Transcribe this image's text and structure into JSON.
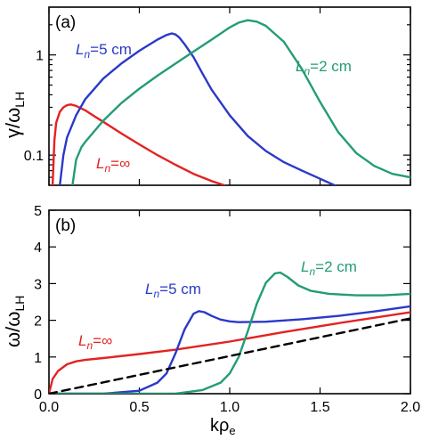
{
  "chart_data": [
    {
      "panel": "(a)",
      "type": "line",
      "ylabel": {
        "main": "γ/ω",
        "sub": "LH"
      },
      "xlim": [
        0,
        2.0
      ],
      "ylim": [
        0.05,
        3.0
      ],
      "yscale": "log",
      "yticks": [
        {
          "v": 0.1,
          "label": "0.1"
        },
        {
          "v": 1,
          "label": "1"
        }
      ],
      "series": [
        {
          "key": "inf",
          "name_l": "L",
          "name_sub": "n",
          "name_rest": "=∞",
          "color": "#e32222",
          "x": [
            0.02,
            0.03,
            0.04,
            0.06,
            0.08,
            0.1,
            0.12,
            0.15,
            0.2,
            0.25,
            0.3,
            0.4,
            0.5,
            0.6,
            0.7,
            0.8,
            0.9,
            0.97
          ],
          "y": [
            0.05,
            0.14,
            0.21,
            0.27,
            0.3,
            0.315,
            0.32,
            0.31,
            0.28,
            0.245,
            0.215,
            0.165,
            0.128,
            0.1,
            0.08,
            0.065,
            0.055,
            0.05
          ]
        },
        {
          "key": "5cm",
          "name_l": "L",
          "name_sub": "n",
          "name_rest": "=5 cm",
          "color": "#2a39c8",
          "x": [
            0.06,
            0.08,
            0.1,
            0.15,
            0.2,
            0.3,
            0.4,
            0.5,
            0.6,
            0.65,
            0.68,
            0.7,
            0.72,
            0.75,
            0.8,
            0.85,
            0.9,
            1.0,
            1.1,
            1.2,
            1.3,
            1.4,
            1.5,
            1.58
          ],
          "y": [
            0.05,
            0.1,
            0.15,
            0.25,
            0.36,
            0.58,
            0.82,
            1.1,
            1.42,
            1.58,
            1.64,
            1.6,
            1.5,
            1.28,
            0.95,
            0.65,
            0.45,
            0.25,
            0.155,
            0.11,
            0.085,
            0.07,
            0.058,
            0.05
          ]
        },
        {
          "key": "2cm",
          "name_l": "L",
          "name_sub": "n",
          "name_rest": "=2 cm",
          "color": "#229c78",
          "x": [
            0.13,
            0.15,
            0.18,
            0.2,
            0.3,
            0.4,
            0.5,
            0.6,
            0.7,
            0.8,
            0.9,
            1.0,
            1.05,
            1.1,
            1.15,
            1.2,
            1.3,
            1.4,
            1.5,
            1.6,
            1.7,
            1.8,
            1.9,
            2.0
          ],
          "y": [
            0.05,
            0.09,
            0.12,
            0.135,
            0.22,
            0.33,
            0.46,
            0.62,
            0.82,
            1.08,
            1.42,
            1.88,
            2.1,
            2.22,
            2.15,
            1.95,
            1.35,
            0.72,
            0.34,
            0.17,
            0.105,
            0.078,
            0.065,
            0.06
          ]
        }
      ]
    },
    {
      "panel": "(b)",
      "type": "line",
      "ylabel": {
        "main": "ω/ω",
        "sub": "LH"
      },
      "xlabel": {
        "main": "kρ",
        "sub": "e"
      },
      "xlim": [
        0,
        2.0
      ],
      "ylim": [
        0,
        5
      ],
      "yticks": [
        {
          "v": 0,
          "label": "0"
        },
        {
          "v": 1,
          "label": "1"
        },
        {
          "v": 2,
          "label": "2"
        },
        {
          "v": 3,
          "label": "3"
        },
        {
          "v": 4,
          "label": "4"
        },
        {
          "v": 5,
          "label": "5"
        }
      ],
      "xticks": [
        {
          "v": 0,
          "label": "0.0"
        },
        {
          "v": 0.5,
          "label": "0.5"
        },
        {
          "v": 1.0,
          "label": "1.0"
        },
        {
          "v": 1.5,
          "label": "1.5"
        },
        {
          "v": 2.0,
          "label": "2.0"
        }
      ],
      "series": [
        {
          "key": "inf",
          "name_l": "L",
          "name_sub": "n",
          "name_rest": "=∞",
          "color": "#e32222",
          "x": [
            0.0,
            0.02,
            0.05,
            0.1,
            0.15,
            0.2,
            0.3,
            0.5,
            0.7,
            1.0,
            1.3,
            1.6,
            2.0
          ],
          "y": [
            0.0,
            0.4,
            0.62,
            0.8,
            0.88,
            0.92,
            0.97,
            1.08,
            1.2,
            1.42,
            1.68,
            1.92,
            2.22
          ]
        },
        {
          "key": "5cm",
          "name_l": "L",
          "name_sub": "n",
          "name_rest": "=5 cm",
          "color": "#2a39c8",
          "x": [
            0.0,
            0.3,
            0.5,
            0.6,
            0.65,
            0.7,
            0.75,
            0.8,
            0.83,
            0.86,
            0.9,
            0.95,
            1.0,
            1.05,
            1.2,
            1.4,
            1.6,
            1.8,
            2.0
          ],
          "y": [
            0.0,
            0.0,
            0.08,
            0.3,
            0.55,
            1.1,
            1.75,
            2.18,
            2.25,
            2.22,
            2.12,
            2.02,
            1.97,
            1.95,
            1.96,
            2.03,
            2.12,
            2.24,
            2.38
          ]
        },
        {
          "key": "2cm",
          "name_l": "L",
          "name_sub": "n",
          "name_rest": "=2 cm",
          "color": "#229c78",
          "x": [
            0.0,
            0.7,
            0.85,
            0.95,
            1.0,
            1.05,
            1.1,
            1.15,
            1.2,
            1.25,
            1.28,
            1.32,
            1.38,
            1.45,
            1.55,
            1.7,
            1.85,
            2.0
          ],
          "y": [
            0.0,
            0.0,
            0.1,
            0.3,
            0.55,
            1.0,
            1.7,
            2.45,
            3.02,
            3.28,
            3.3,
            3.18,
            2.95,
            2.8,
            2.72,
            2.68,
            2.68,
            2.72
          ]
        },
        {
          "key": "dashed",
          "color": "#000000",
          "dash": true,
          "x": [
            0.0,
            2.0
          ],
          "y": [
            0.0,
            2.05
          ]
        }
      ]
    }
  ]
}
